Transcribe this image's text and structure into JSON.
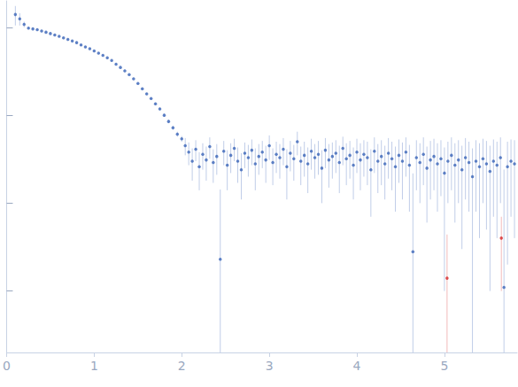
{
  "chart_data": {
    "type": "scatter",
    "log": "y",
    "grid": false,
    "tick_labels": "x",
    "marker": "circle",
    "xlim": [
      0,
      5.83
    ],
    "xticks": [
      0,
      1,
      2,
      3,
      4,
      5
    ],
    "ylim": [
      0.0002,
      2
    ],
    "yticks": [
      0.001,
      0.01,
      0.1,
      1
    ],
    "series": [
      {
        "color": "#3a64b8",
        "x": [
          0.1,
          0.15,
          0.2,
          0.25,
          0.3,
          0.35,
          0.4,
          0.45,
          0.5,
          0.55,
          0.6,
          0.65,
          0.7,
          0.75,
          0.8,
          0.85,
          0.9,
          0.95,
          1.0,
          1.05,
          1.1,
          1.15,
          1.2,
          1.25,
          1.3,
          1.35,
          1.4,
          1.45,
          1.5,
          1.55,
          1.6,
          1.65,
          1.7,
          1.75,
          1.8,
          1.85,
          1.9,
          1.95,
          2.0,
          2.04,
          2.08,
          2.12,
          2.16,
          2.2,
          2.24,
          2.28,
          2.32,
          2.36,
          2.4,
          2.44,
          2.48,
          2.52,
          2.56,
          2.6,
          2.64,
          2.68,
          2.72,
          2.76,
          2.8,
          2.84,
          2.88,
          2.92,
          2.96,
          3.0,
          3.04,
          3.08,
          3.12,
          3.16,
          3.2,
          3.24,
          3.28,
          3.32,
          3.36,
          3.4,
          3.44,
          3.48,
          3.52,
          3.56,
          3.6,
          3.64,
          3.68,
          3.72,
          3.76,
          3.8,
          3.84,
          3.88,
          3.92,
          3.96,
          4.0,
          4.04,
          4.08,
          4.12,
          4.16,
          4.2,
          4.24,
          4.28,
          4.32,
          4.36,
          4.4,
          4.44,
          4.48,
          4.52,
          4.56,
          4.6,
          4.64,
          4.68,
          4.72,
          4.76,
          4.8,
          4.84,
          4.88,
          4.92,
          4.96,
          5.0,
          5.04,
          5.08,
          5.12,
          5.16,
          5.2,
          5.24,
          5.28,
          5.32,
          5.36,
          5.4,
          5.44,
          5.48,
          5.52,
          5.56,
          5.6,
          5.64,
          5.68,
          5.72,
          5.76,
          5.8
        ],
        "values": [
          1.4,
          1.25,
          1.08,
          0.98,
          0.96,
          0.94,
          0.91,
          0.88,
          0.85,
          0.82,
          0.79,
          0.76,
          0.73,
          0.7,
          0.67,
          0.63,
          0.6,
          0.57,
          0.54,
          0.51,
          0.48,
          0.45,
          0.42,
          0.38,
          0.35,
          0.32,
          0.29,
          0.26,
          0.23,
          0.2,
          0.175,
          0.155,
          0.135,
          0.118,
          0.1,
          0.085,
          0.072,
          0.061,
          0.054,
          0.045,
          0.038,
          0.03,
          0.041,
          0.026,
          0.036,
          0.031,
          0.044,
          0.029,
          0.034,
          0.0023,
          0.039,
          0.027,
          0.035,
          0.042,
          0.03,
          0.024,
          0.037,
          0.033,
          0.04,
          0.028,
          0.034,
          0.038,
          0.031,
          0.045,
          0.029,
          0.036,
          0.033,
          0.041,
          0.026,
          0.037,
          0.032,
          0.05,
          0.03,
          0.035,
          0.028,
          0.039,
          0.033,
          0.036,
          0.025,
          0.04,
          0.031,
          0.034,
          0.037,
          0.029,
          0.042,
          0.032,
          0.035,
          0.027,
          0.038,
          0.031,
          0.036,
          0.033,
          0.024,
          0.039,
          0.03,
          0.034,
          0.028,
          0.037,
          0.032,
          0.026,
          0.035,
          0.03,
          0.038,
          0.027,
          0.0028,
          0.033,
          0.029,
          0.036,
          0.025,
          0.031,
          0.034,
          0.028,
          0.032,
          0.022,
          0.03,
          0.035,
          0.027,
          0.031,
          0.024,
          0.033,
          0.029,
          0.02,
          0.03,
          0.026,
          0.032,
          0.028,
          0.023,
          0.03,
          0.027,
          0.033,
          0.0011,
          0.026,
          0.03,
          0.028
        ],
        "errors": [
          0.35,
          0.2,
          0.08,
          0.03,
          0.015,
          0.012,
          0.01,
          0.01,
          0.009,
          0.009,
          0.008,
          0.008,
          0.008,
          0.007,
          0.007,
          0.007,
          0.006,
          0.006,
          0.006,
          0.006,
          0.005,
          0.005,
          0.005,
          0.005,
          0.005,
          0.004,
          0.004,
          0.004,
          0.004,
          0.004,
          0.004,
          0.004,
          0.004,
          0.004,
          0.004,
          0.004,
          0.004,
          0.004,
          0.004,
          0.01,
          0.011,
          0.012,
          0.011,
          0.012,
          0.012,
          0.013,
          0.012,
          0.012,
          0.013,
          0.012,
          0.012,
          0.013,
          0.013,
          0.012,
          0.013,
          0.013,
          0.012,
          0.013,
          0.013,
          0.014,
          0.013,
          0.013,
          0.014,
          0.014,
          0.013,
          0.014,
          0.014,
          0.014,
          0.015,
          0.014,
          0.014,
          0.015,
          0.014,
          0.015,
          0.015,
          0.015,
          0.014,
          0.015,
          0.015,
          0.015,
          0.016,
          0.015,
          0.015,
          0.016,
          0.015,
          0.016,
          0.016,
          0.016,
          0.016,
          0.017,
          0.016,
          0.017,
          0.017,
          0.017,
          0.017,
          0.018,
          0.017,
          0.018,
          0.018,
          0.018,
          0.018,
          0.019,
          0.018,
          0.019,
          0.019,
          0.019,
          0.019,
          0.02,
          0.019,
          0.02,
          0.02,
          0.02,
          0.02,
          0.021,
          0.02,
          0.021,
          0.021,
          0.021,
          0.021,
          0.022,
          0.021,
          0.022,
          0.022,
          0.022,
          0.022,
          0.023,
          0.022,
          0.023,
          0.023,
          0.023,
          0.023,
          0.024,
          0.023,
          0.024
        ]
      },
      {
        "color": "#d62728",
        "x": [
          5.03,
          5.65
        ],
        "values": [
          0.0014,
          0.004
        ],
        "errors": [
          0.003,
          0.003
        ]
      }
    ]
  }
}
